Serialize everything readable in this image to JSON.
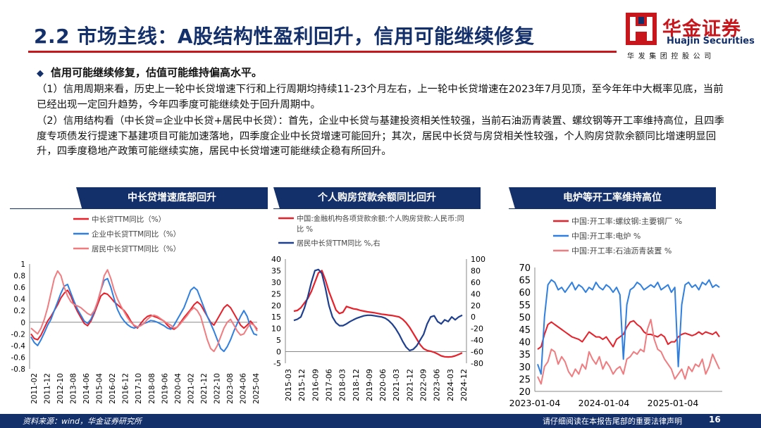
{
  "header": {
    "title": "2.2 市场主线：A股结构性盈利回升，信用可能继续修复",
    "logo_cn": "华金证券",
    "logo_en": "Huajin Securities",
    "logo_sub": "华发集团控股公司",
    "accent_color": "#c8161d",
    "brand_color": "#14306b"
  },
  "body": {
    "bullet": "信用可能继续修复，估值可能维持偏高水平。",
    "para1": "（1）信用周期来看，历史上一轮中长贷增速下行和上行周期均持续11-23个月左右，上一轮中长贷增速在2023年7月见顶，至今年年中大概率见底，当前已经出现一定回升趋势，今年四季度可能继续处于回升周期中。",
    "para2": "（2）信用结构看（中长贷=企业中长贷+居民中长贷）：首先，企业中长贷与基建投资相关性较强，当前石油沥青装置、螺纹钢等开工率维持高位，且四季度专项债发行提速下基建项目可能加速落地，四季度企业中长贷增速可能回升；其次，居民中长贷与房贷相关性较强，个人购房贷款余额同比增速明显回升，四季度稳地产政策可能继续实施，居民中长贷增速可能继续企稳有所回升。"
  },
  "panels": {
    "p1": "中长贷增速底部回升",
    "p2": "个人购房贷款余额同比回升",
    "p3": "电炉等开工率维持高位"
  },
  "footer": {
    "source": "资料来源：wind，华金证券研究所",
    "disclaimer": "请仔细阅读在本报告尾部的重要法律声明",
    "page": "16"
  },
  "chart_data": [
    {
      "type": "line",
      "title": "中长贷增速底部回升",
      "ylim": [
        -0.8,
        1
      ],
      "yticks": [
        "1",
        "0.8",
        "0.6",
        "0.4",
        "0.2",
        "0",
        "-0.2",
        "-0.4",
        "-0.6",
        "-0.8"
      ],
      "xticks": [
        "2011-02",
        "2011-12",
        "2012-10",
        "2013-08",
        "2014-06",
        "2015-04",
        "2016-02",
        "2016-12",
        "2017-10",
        "2018-08",
        "2019-06",
        "2020-04",
        "2021-02",
        "2021-12",
        "2022-10",
        "2023-08",
        "2024-06",
        "2025-04"
      ],
      "legend_position": "top-left",
      "series": [
        {
          "name": "中长贷TTM同比（%）",
          "color": "#e8202a",
          "values": [
            -0.2,
            -0.28,
            -0.3,
            -0.22,
            -0.1,
            0.02,
            0.1,
            0.2,
            0.3,
            0.42,
            0.5,
            0.55,
            0.45,
            0.3,
            0.18,
            0.08,
            -0.02,
            -0.06,
            0.02,
            0.15,
            0.3,
            0.45,
            0.5,
            0.48,
            0.42,
            0.35,
            0.3,
            0.25,
            0.2,
            0.12,
            0.02,
            -0.06,
            -0.1,
            -0.02,
            0.05,
            0.1,
            0.12,
            0.1,
            0.08,
            0.05,
            0.02,
            -0.05,
            -0.1,
            -0.12,
            -0.08,
            0,
            0.08,
            0.15,
            0.22,
            0.3,
            0.35,
            0.3,
            0.2,
            0.1,
            0,
            -0.05,
            0.05,
            0.15,
            0.25,
            0.3,
            0.25,
            0.15,
            0.05,
            -0.05,
            -0.1,
            -0.05,
            0.02,
            -0.05,
            -0.12
          ]
        },
        {
          "name": "企业中长贷TTM同比（%）",
          "color": "#2f7fe0",
          "values": [
            -0.25,
            -0.35,
            -0.4,
            -0.3,
            -0.18,
            -0.05,
            0.05,
            0.2,
            0.35,
            0.5,
            0.62,
            0.65,
            0.5,
            0.35,
            0.22,
            0.12,
            0.02,
            -0.02,
            0.05,
            0.18,
            0.35,
            0.55,
            0.72,
            0.75,
            0.6,
            0.4,
            0.22,
            0.1,
            0.02,
            -0.04,
            -0.08,
            -0.1,
            -0.08,
            -0.05,
            -0.02,
            0,
            0.03,
            0.02,
            0,
            -0.03,
            -0.06,
            -0.1,
            -0.12,
            -0.05,
            0.05,
            0.15,
            0.25,
            0.4,
            0.55,
            0.6,
            0.55,
            0.4,
            0.25,
            0.1,
            -0.02,
            -0.15,
            -0.3,
            -0.45,
            -0.5,
            -0.42,
            -0.3,
            -0.15,
            -0.02,
            0.1,
            0.2,
            0.1,
            -0.08,
            -0.2,
            -0.22
          ]
        },
        {
          "name": "居民中长贷TTM同比（%）",
          "color": "#f07c80",
          "values": [
            -0.1,
            -0.15,
            -0.2,
            -0.1,
            0.05,
            0.25,
            0.5,
            0.75,
            0.88,
            0.8,
            0.6,
            0.45,
            0.35,
            0.3,
            0.28,
            0.25,
            0.2,
            0.15,
            0.12,
            0.2,
            0.35,
            0.55,
            0.8,
            0.9,
            0.75,
            0.55,
            0.4,
            0.28,
            0.18,
            0.08,
            0,
            -0.05,
            -0.08,
            -0.06,
            -0.02,
            0.05,
            0.1,
            0.12,
            0.1,
            0.06,
            0.02,
            -0.02,
            -0.05,
            -0.1,
            -0.08,
            -0.02,
            0.05,
            0.12,
            0.2,
            0.25,
            0.2,
            0.1,
            -0.1,
            -0.3,
            -0.45,
            -0.5,
            -0.4,
            -0.25,
            -0.1,
            0,
            0.05,
            -0.05,
            -0.15,
            -0.22,
            -0.2,
            -0.1,
            -0.02,
            -0.05,
            -0.15
          ]
        }
      ]
    },
    {
      "type": "line",
      "title": "个人购房贷款余额同比回升",
      "ylim_left": [
        -5,
        40
      ],
      "ylim_right": [
        -80,
        100
      ],
      "yticks_left": [
        "40",
        "35",
        "30",
        "25",
        "20",
        "15",
        "10",
        "5",
        "0",
        "-5"
      ],
      "yticks_right": [
        "100",
        "80",
        "60",
        "40",
        "20",
        "0",
        "-20",
        "-40",
        "-60",
        "-80"
      ],
      "xticks": [
        "2015-03",
        "2015-12",
        "2016-09",
        "2017-06",
        "2018-03",
        "2018-12",
        "2019-09",
        "2020-06",
        "2021-03",
        "2021-12",
        "2022-09",
        "2023-06",
        "2024-03",
        "2024-12"
      ],
      "legend_position": "top-left",
      "series": [
        {
          "name": "中国:金融机构各项贷款余额:个人购房贷款:人民币:同比 %",
          "color": "#e8202a",
          "axis": "left",
          "values": [
            17.5,
            17.8,
            19,
            21,
            23,
            26,
            30,
            34,
            35,
            31,
            26,
            22,
            18,
            16.5,
            17,
            19.5,
            19,
            18.5,
            18.3,
            17.8,
            17.5,
            17.2,
            17,
            16.8,
            16.5,
            16.2,
            16,
            15.8,
            15.6,
            15.3,
            15,
            14,
            12.5,
            10.5,
            8,
            5.5,
            3,
            1.3,
            0.5,
            0.2,
            -0.3,
            -1,
            -1.8,
            -2.2,
            -2.3,
            -2.2,
            -1.8,
            -1.2,
            -0.5
          ]
        },
        {
          "name": "居民中长贷TTM同比 %,右",
          "color": "#1f3f8f",
          "axis": "right",
          "values": [
            -6,
            -4,
            0,
            15,
            35,
            60,
            80,
            82,
            75,
            50,
            20,
            0,
            -10,
            -15,
            -15,
            -12,
            -8,
            -5,
            -2,
            0,
            2,
            3,
            3,
            2,
            1,
            0,
            -2,
            -6,
            -12,
            -20,
            -30,
            -42,
            -52,
            -58,
            -56,
            -50,
            -40,
            -30,
            -12,
            0,
            2,
            -8,
            -12,
            -5,
            -8,
            0,
            -5,
            0,
            3
          ]
        }
      ]
    },
    {
      "type": "line",
      "title": "电炉等开工率维持高位",
      "ylim": [
        20,
        70
      ],
      "yticks": [
        "70",
        "65",
        "60",
        "55",
        "50",
        "45",
        "40",
        "35",
        "30",
        "25",
        "20"
      ],
      "xticks": [
        "2023-01-04",
        "2024-01-04",
        "2025-01-04"
      ],
      "legend_position": "top",
      "series": [
        {
          "name": "中国:开工率:螺纹钢:主要钢厂 %",
          "color": "#e8202a",
          "values": [
            37,
            38,
            43,
            47,
            48,
            47,
            46,
            45,
            44,
            43,
            42,
            41.5,
            41,
            40,
            42,
            44,
            43,
            42,
            42,
            41,
            42,
            40,
            38,
            41,
            42,
            43,
            46,
            48,
            48.5,
            47,
            46,
            44,
            43,
            43,
            42.5,
            42,
            43,
            42,
            39,
            40,
            40,
            42,
            43,
            43.5,
            43,
            42.5,
            43,
            44,
            43,
            44,
            43.5,
            43,
            44,
            42
          ]
        },
        {
          "name": "中国:开工率:电炉 %",
          "color": "#2f7fe0",
          "values": [
            31,
            27,
            50,
            63,
            65,
            64,
            61,
            62,
            60,
            62,
            64,
            61,
            63,
            62,
            60,
            62,
            61,
            64,
            62,
            61,
            63,
            62,
            60,
            62,
            59,
            33,
            55,
            61,
            62,
            64,
            63,
            61,
            62,
            63,
            62,
            64,
            61,
            62,
            63,
            60,
            62,
            30,
            55,
            63,
            64,
            62,
            63,
            61,
            64,
            63,
            65,
            62,
            63,
            62
          ]
        },
        {
          "name": "中国:开工率:石油沥青装置 %",
          "color": "#f07c80",
          "values": [
            26,
            23,
            30,
            32,
            37,
            36,
            31,
            34,
            32,
            28,
            26,
            29,
            27,
            31,
            29,
            36,
            33,
            31,
            34,
            29,
            32,
            30,
            27,
            29,
            30,
            27,
            33,
            34,
            36,
            35,
            37,
            36,
            45,
            49,
            41,
            37,
            36,
            33,
            31,
            29,
            25,
            27,
            29,
            25,
            30,
            28,
            31,
            30,
            33,
            27,
            30,
            35,
            32,
            29
          ]
        }
      ]
    }
  ]
}
